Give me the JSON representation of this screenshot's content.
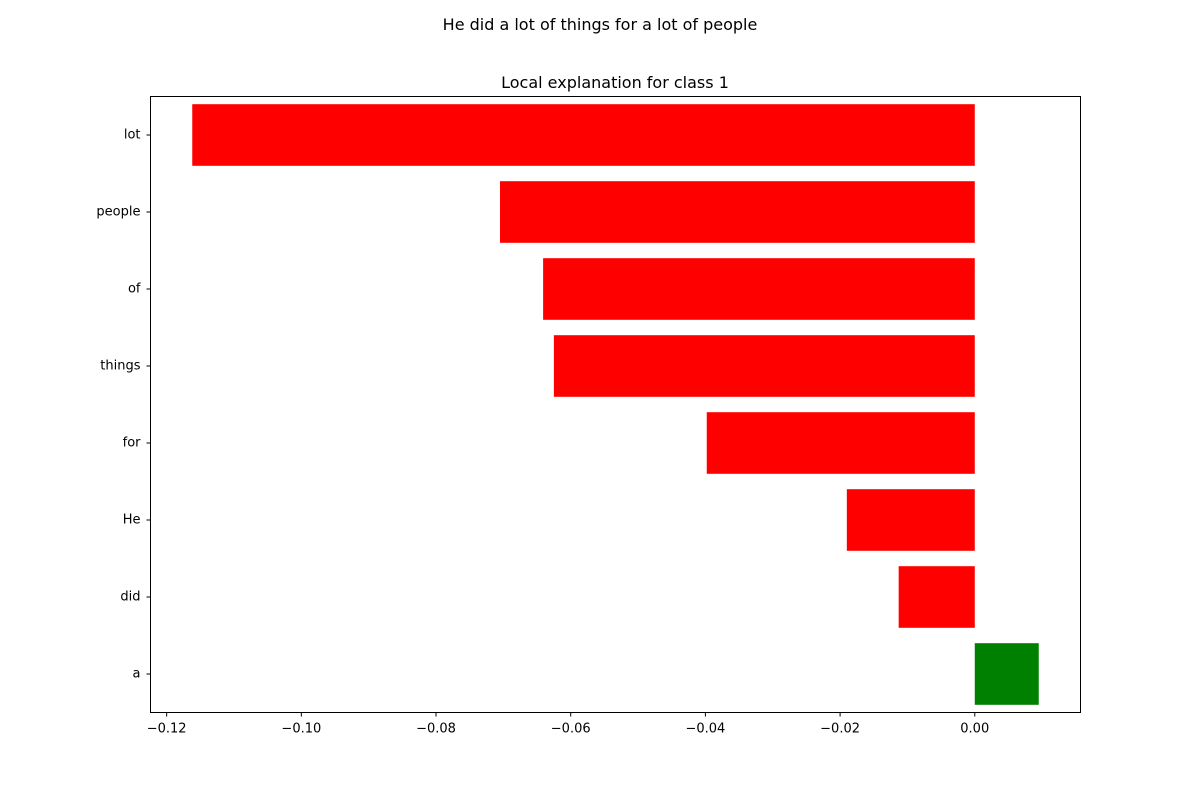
{
  "chart_data": {
    "type": "bar",
    "orientation": "horizontal",
    "suptitle": "He did a lot of things for a lot of people",
    "title": "Local explanation for class 1",
    "xlabel": "",
    "ylabel": "",
    "categories": [
      "lot",
      "people",
      "of",
      "things",
      "for",
      "He",
      "did",
      "a"
    ],
    "values": [
      -0.1162,
      -0.0705,
      -0.0641,
      -0.0625,
      -0.0398,
      -0.019,
      -0.0113,
      0.0095
    ],
    "xlim": [
      -0.1224,
      0.0157
    ],
    "xticks": [
      -0.12,
      -0.1,
      -0.08,
      -0.06,
      -0.04,
      -0.02,
      0.0
    ],
    "xtick_labels": [
      "−0.12",
      "−0.10",
      "−0.08",
      "−0.06",
      "−0.04",
      "−0.02",
      "0.00"
    ],
    "colors": {
      "negative": "#ff0000",
      "positive": "#008000"
    },
    "grid": false,
    "legend": "none"
  }
}
